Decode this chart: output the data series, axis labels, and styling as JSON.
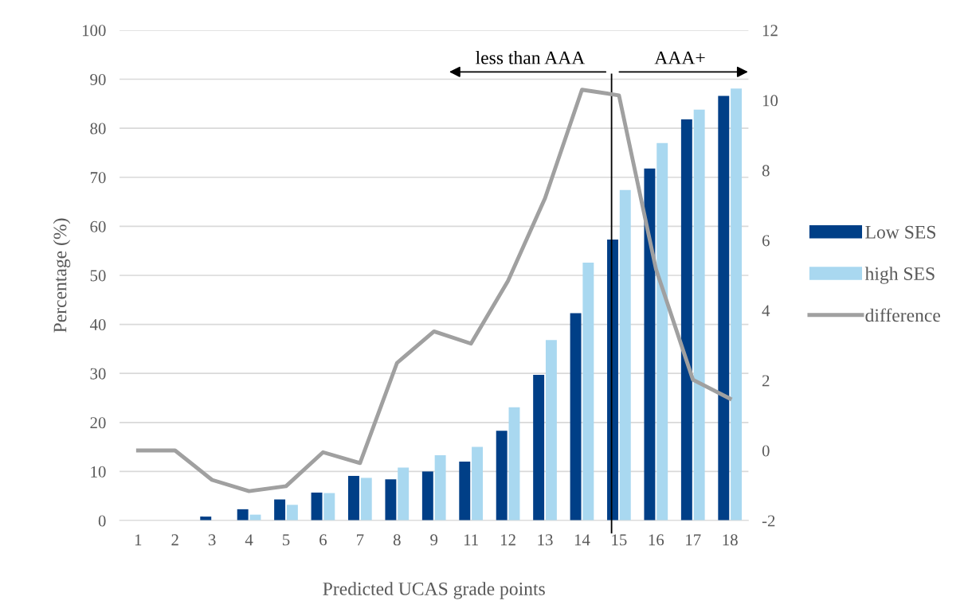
{
  "chart_data": {
    "type": "bar",
    "xlabel": "Predicted UCAS grade points",
    "ylabel": "Percentage (%)",
    "categories": [
      "1",
      "2",
      "3",
      "4",
      "5",
      "6",
      "7",
      "8",
      "9",
      "11",
      "12",
      "13",
      "14",
      "15",
      "16",
      "17",
      "18"
    ],
    "series": [
      {
        "name": "Low SES",
        "color": "#003f87",
        "values": [
          0,
          0,
          0.8,
          2.3,
          4.3,
          5.7,
          9.1,
          8.4,
          10,
          12,
          18.3,
          29.7,
          42.3,
          57.3,
          71.8,
          81.8,
          86.6
        ]
      },
      {
        "name": "high SES",
        "color": "#a9d8f0",
        "values": [
          0,
          0,
          0,
          1.2,
          3.2,
          5.6,
          8.7,
          10.8,
          13.3,
          15,
          23.1,
          36.8,
          52.6,
          67.4,
          77,
          83.8,
          88.1
        ]
      },
      {
        "name": "difference",
        "color": "#a0a0a0",
        "type": "line",
        "axis": "y2",
        "values": [
          0,
          0,
          -0.84,
          -1.16,
          -1.02,
          -0.05,
          -0.36,
          2.5,
          3.4,
          3.05,
          4.84,
          7.2,
          10.3,
          10.14,
          5.18,
          2.02,
          1.48
        ]
      }
    ],
    "ylim": [
      0,
      100
    ],
    "yticks": [
      0,
      10,
      20,
      30,
      40,
      50,
      60,
      70,
      80,
      90,
      100
    ],
    "y2lim": [
      -2,
      12
    ],
    "y2ticks": [
      -2,
      0,
      2,
      4,
      6,
      8,
      10,
      12
    ],
    "ref_lines": [
      {
        "axis": "x",
        "value": "15",
        "color": "#000000"
      }
    ],
    "annotations": [
      "less than AAA",
      "AAA+"
    ],
    "grid": "y",
    "legend": "right",
    "marker": "none",
    "line_style": "solid"
  }
}
